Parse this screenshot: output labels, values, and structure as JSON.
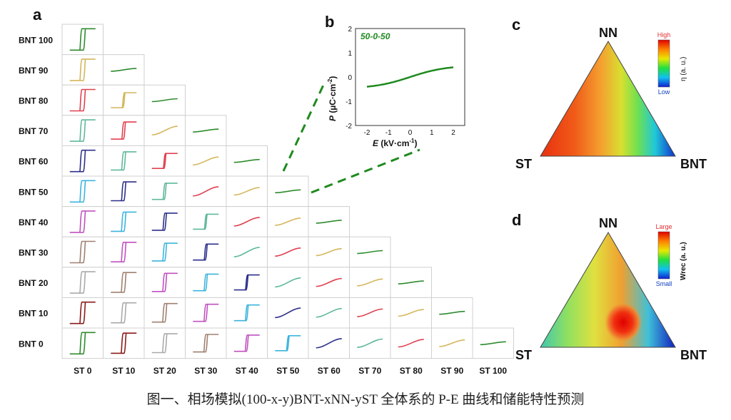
{
  "panels": {
    "a": "a",
    "b": "b",
    "c": "c",
    "d": "d"
  },
  "grid": {
    "row_labels": [
      "BNT 100",
      "BNT 90",
      "BNT 80",
      "BNT 70",
      "BNT 60",
      "BNT 50",
      "BNT 40",
      "BNT 30",
      "BNT 20",
      "BNT 10",
      "BNT 0"
    ],
    "col_labels": [
      "ST 0",
      "ST 10",
      "ST 20",
      "ST 30",
      "ST 40",
      "ST 50",
      "ST 60",
      "ST 70",
      "ST 80",
      "ST 90",
      "ST 100"
    ]
  },
  "inset": {
    "tag": "50-0-50",
    "ylabel_p": "P",
    "ylabel_unit": " (µC·cm",
    "ylabel_exp": "-2",
    "ylabel_close": ")",
    "xlabel_e": "E",
    "xlabel_unit": " (kV·cm",
    "xlabel_exp": "-1",
    "xlabel_close": ")",
    "xticks": [
      "-2",
      "-1",
      "0",
      "1",
      "2"
    ],
    "yticks": [
      "2",
      "1",
      "0",
      "-1",
      "-2"
    ]
  },
  "ternary_c": {
    "top": "NN",
    "left": "ST",
    "right": "BNT",
    "scale_high": "High",
    "scale_low": "Low",
    "scale_title": "η (a. u.)"
  },
  "ternary_d": {
    "top": "NN",
    "left": "ST",
    "right": "BNT",
    "scale_high": "Large",
    "scale_low": "Small",
    "scale_title": "Wrec (a. u.)"
  },
  "caption": "图一、相场模拟(100-x-y)BNT-xNN-yST 全体系的 P-E 曲线和储能特性预测",
  "colors": {
    "green": "#2e8b2e",
    "palette": [
      "#2e8b2e",
      "#d4b65c",
      "#e04050",
      "#5fb89a",
      "#2c2f8a",
      "#3cb4dc",
      "#c050c0",
      "#a08070",
      "#a9a9a9",
      "#8b1a1a"
    ]
  }
}
